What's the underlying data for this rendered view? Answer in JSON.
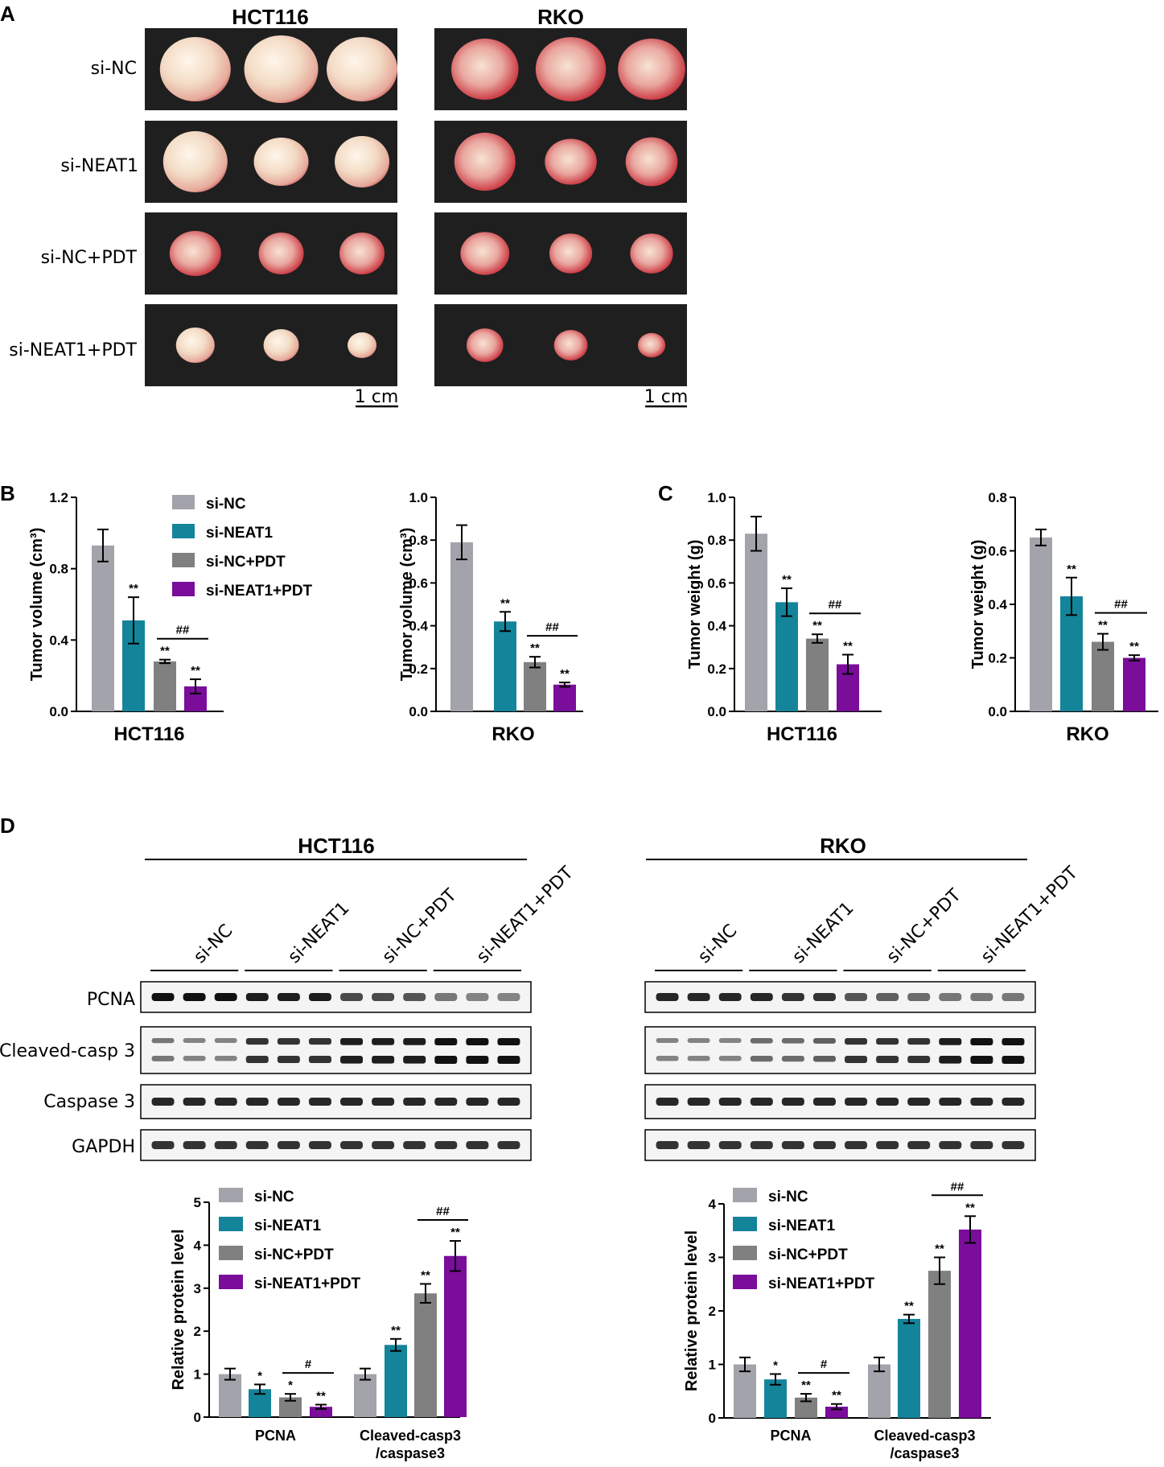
{
  "panels": {
    "a": "A",
    "b": "B",
    "c": "C",
    "d": "D"
  },
  "colors": {
    "si-NC": "#a3a3ab",
    "si-NEAT1": "#14849a",
    "si-NC+PDT": "#808080",
    "si-NEAT1+PDT": "#7a0d9a"
  },
  "legend": [
    "si-NC",
    "si-NEAT1",
    "si-NC+PDT",
    "si-NEAT1+PDT"
  ],
  "photos": {
    "cells": [
      "HCT116",
      "RKO"
    ],
    "groups": [
      "si-NC",
      "si-NEAT1",
      "si-NC+PDT",
      "si-NEAT1+PDT"
    ],
    "scale_bar": "1 cm"
  },
  "blots": {
    "cells": [
      "HCT116",
      "RKO"
    ],
    "lanes": [
      "si-NC",
      "si-NEAT1",
      "si-NC+PDT",
      "si-NEAT1+PDT"
    ],
    "proteins": [
      "PCNA",
      "Cleaved-casp 3",
      "Caspase 3",
      "GAPDH"
    ]
  },
  "chart_data": [
    {
      "type": "bar",
      "categories": [
        "HCT116"
      ],
      "xlabel": "HCT116",
      "ylabel": "Tumor volume (cm³)",
      "ylim": [
        0,
        1.2
      ],
      "yticks": [
        "0.0",
        "0.4",
        "0.8",
        "1.2"
      ],
      "legend_position": "top-right",
      "series": [
        {
          "name": "si-NC",
          "values": [
            0.93
          ],
          "err": [
            0.09
          ],
          "sig": ""
        },
        {
          "name": "si-NEAT1",
          "values": [
            0.51
          ],
          "err": [
            0.13
          ],
          "sig": "**"
        },
        {
          "name": "si-NC+PDT",
          "values": [
            0.28
          ],
          "err": [
            0.01
          ],
          "sig": "**"
        },
        {
          "name": "si-NEAT1+PDT",
          "values": [
            0.14
          ],
          "err": [
            0.04
          ],
          "sig": "**"
        }
      ],
      "bracket": "##"
    },
    {
      "type": "bar",
      "categories": [
        "RKO"
      ],
      "xlabel": "RKO",
      "ylabel": "Tumor volume (cm³)",
      "ylim": [
        0,
        1.0
      ],
      "yticks": [
        "0.0",
        "0.2",
        "0.4",
        "0.6",
        "0.8",
        "1.0"
      ],
      "series": [
        {
          "name": "si-NC",
          "values": [
            0.79
          ],
          "err": [
            0.08
          ],
          "sig": ""
        },
        {
          "name": "si-NEAT1",
          "values": [
            0.42
          ],
          "err": [
            0.045
          ],
          "sig": "**"
        },
        {
          "name": "si-NC+PDT",
          "values": [
            0.23
          ],
          "err": [
            0.025
          ],
          "sig": "**"
        },
        {
          "name": "si-NEAT1+PDT",
          "values": [
            0.125
          ],
          "err": [
            0.01
          ],
          "sig": "**"
        }
      ],
      "bracket": "##"
    },
    {
      "type": "bar",
      "categories": [
        "HCT116"
      ],
      "xlabel": "HCT116",
      "ylabel": "Tumor weight (g)",
      "ylim": [
        0,
        1.0
      ],
      "yticks": [
        "0.0",
        "0.2",
        "0.4",
        "0.6",
        "0.8",
        "1.0"
      ],
      "series": [
        {
          "name": "si-NC",
          "values": [
            0.83
          ],
          "err": [
            0.08
          ],
          "sig": ""
        },
        {
          "name": "si-NEAT1",
          "values": [
            0.51
          ],
          "err": [
            0.065
          ],
          "sig": "**"
        },
        {
          "name": "si-NC+PDT",
          "values": [
            0.34
          ],
          "err": [
            0.02
          ],
          "sig": "**"
        },
        {
          "name": "si-NEAT1+PDT",
          "values": [
            0.22
          ],
          "err": [
            0.045
          ],
          "sig": "**"
        }
      ],
      "bracket": "##"
    },
    {
      "type": "bar",
      "categories": [
        "RKO"
      ],
      "xlabel": "RKO",
      "ylabel": "Tumor weight (g)",
      "ylim": [
        0,
        0.8
      ],
      "yticks": [
        "0.0",
        "0.2",
        "0.4",
        "0.6",
        "0.8"
      ],
      "series": [
        {
          "name": "si-NC",
          "values": [
            0.65
          ],
          "err": [
            0.03
          ],
          "sig": ""
        },
        {
          "name": "si-NEAT1",
          "values": [
            0.43
          ],
          "err": [
            0.07
          ],
          "sig": "**"
        },
        {
          "name": "si-NC+PDT",
          "values": [
            0.26
          ],
          "err": [
            0.03
          ],
          "sig": "**"
        },
        {
          "name": "si-NEAT1+PDT",
          "values": [
            0.2
          ],
          "err": [
            0.01
          ],
          "sig": "**"
        }
      ],
      "bracket": "##"
    },
    {
      "type": "bar",
      "categories": [
        "PCNA",
        "Cleaved-casp3\n/caspase3"
      ],
      "category_lines": [
        [
          "PCNA"
        ],
        [
          "Cleaved-casp3",
          "/caspase3"
        ]
      ],
      "ylabel": "Relative protein level",
      "ylim": [
        0,
        5
      ],
      "yticks": [
        "0",
        "1",
        "2",
        "3",
        "4",
        "5"
      ],
      "legend_position": "top-left",
      "series": [
        {
          "name": "si-NC",
          "values": [
            1.0,
            1.0
          ],
          "err": [
            0.13,
            0.13
          ],
          "sig": [
            "",
            ""
          ]
        },
        {
          "name": "si-NEAT1",
          "values": [
            0.65,
            1.68
          ],
          "err": [
            0.11,
            0.14
          ],
          "sig": [
            "*",
            "**"
          ]
        },
        {
          "name": "si-NC+PDT",
          "values": [
            0.46,
            2.88
          ],
          "err": [
            0.08,
            0.22
          ],
          "sig": [
            "*",
            "**"
          ]
        },
        {
          "name": "si-NEAT1+PDT",
          "values": [
            0.24,
            3.75
          ],
          "err": [
            0.05,
            0.35
          ],
          "sig": [
            "**",
            "**"
          ]
        }
      ],
      "brackets": [
        "#",
        "##"
      ]
    },
    {
      "type": "bar",
      "categories": [
        "PCNA",
        "Cleaved-casp3\n/caspase3"
      ],
      "category_lines": [
        [
          "PCNA"
        ],
        [
          "Cleaved-casp3",
          "/caspase3"
        ]
      ],
      "ylabel": "Relative protein level",
      "ylim": [
        0,
        4
      ],
      "yticks": [
        "0",
        "1",
        "2",
        "3",
        "4"
      ],
      "legend_position": "top-left",
      "series": [
        {
          "name": "si-NC",
          "values": [
            1.0,
            1.0
          ],
          "err": [
            0.13,
            0.13
          ],
          "sig": [
            "",
            ""
          ]
        },
        {
          "name": "si-NEAT1",
          "values": [
            0.72,
            1.85
          ],
          "err": [
            0.1,
            0.08
          ],
          "sig": [
            "*",
            "**"
          ]
        },
        {
          "name": "si-NC+PDT",
          "values": [
            0.38,
            2.75
          ],
          "err": [
            0.07,
            0.25
          ],
          "sig": [
            "**",
            "**"
          ]
        },
        {
          "name": "si-NEAT1+PDT",
          "values": [
            0.21,
            3.52
          ],
          "err": [
            0.05,
            0.25
          ],
          "sig": [
            "**",
            "**"
          ]
        }
      ],
      "brackets": [
        "#",
        "##"
      ]
    }
  ]
}
